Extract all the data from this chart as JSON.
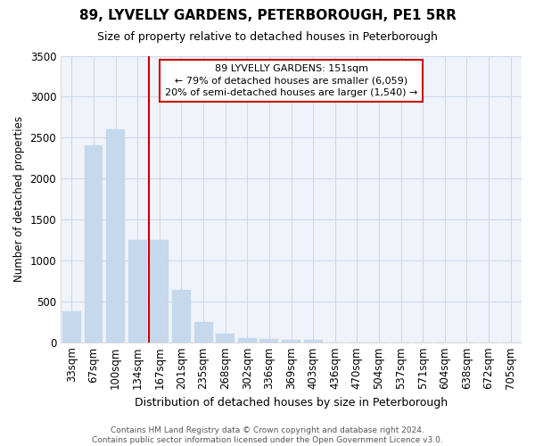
{
  "title": "89, LYVELLY GARDENS, PETERBOROUGH, PE1 5RR",
  "subtitle": "Size of property relative to detached houses in Peterborough",
  "xlabel": "Distribution of detached houses by size in Peterborough",
  "ylabel": "Number of detached properties",
  "categories": [
    "33sqm",
    "67sqm",
    "100sqm",
    "134sqm",
    "167sqm",
    "201sqm",
    "235sqm",
    "268sqm",
    "302sqm",
    "336sqm",
    "369sqm",
    "403sqm",
    "436sqm",
    "470sqm",
    "504sqm",
    "537sqm",
    "571sqm",
    "604sqm",
    "638sqm",
    "672sqm",
    "705sqm"
  ],
  "values": [
    380,
    2400,
    2600,
    1250,
    1250,
    640,
    250,
    110,
    55,
    40,
    30,
    30,
    0,
    0,
    0,
    0,
    0,
    0,
    0,
    0,
    0
  ],
  "bar_color": "#c5d8ec",
  "bar_edge_color": "#c5d8ec",
  "bar_width": 0.85,
  "property_line_x": 3.5,
  "annotation_line1": "89 LYVELLY GARDENS: 151sqm",
  "annotation_line2": "← 79% of detached houses are smaller (6,059)",
  "annotation_line3": "20% of semi-detached houses are larger (1,540) →",
  "annotation_box_color": "#ffffff",
  "annotation_border_color": "#cc0000",
  "vline_color": "#cc0000",
  "ylim": [
    0,
    3500
  ],
  "ytick_interval": 500,
  "background_color": "#ffffff",
  "plot_bg_color": "#f0f4fa",
  "grid_color": "#d0d8e8",
  "footer_line1": "Contains HM Land Registry data © Crown copyright and database right 2024.",
  "footer_line2": "Contains public sector information licensed under the Open Government Licence v3.0."
}
